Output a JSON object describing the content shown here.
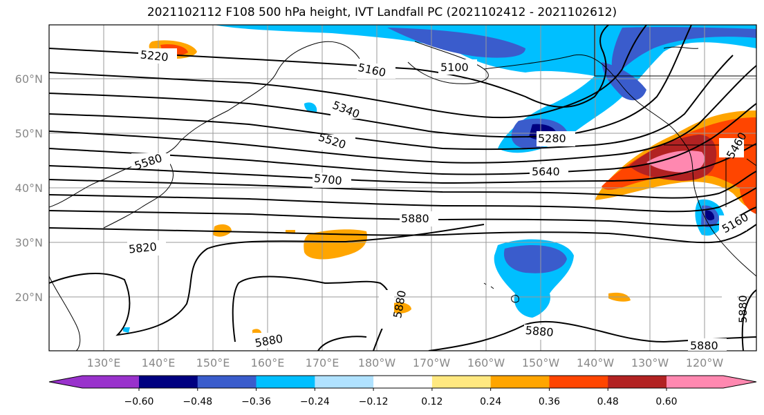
{
  "title": "2021102112 F108 500 hPa height, IVT Landfall PC (2021102412 - 2021102612)",
  "lat_labels": [
    "60°N",
    "50°N",
    "40°N",
    "30°N",
    "20°N"
  ],
  "lon_labels": [
    "130°E",
    "140°E",
    "150°E",
    "160°E",
    "170°E",
    "180°W",
    "170°W",
    "160°W",
    "150°W",
    "140°W",
    "130°W",
    "120°W"
  ],
  "contour_labels": [
    "5220",
    "5160",
    "5100",
    "5280",
    "5340",
    "5520",
    "5580",
    "5640",
    "5700",
    "5880",
    "5820",
    "5880",
    "5880",
    "5880",
    "5880",
    "5880",
    "5460",
    "5160"
  ],
  "colorbar": {
    "ticks": [
      "−0.60",
      "−0.48",
      "−0.36",
      "−0.24",
      "−0.12",
      "0.12",
      "0.24",
      "0.36",
      "0.48",
      "0.60"
    ],
    "colors": [
      "#9932cc",
      "#000080",
      "#3a5ccc",
      "#00bfff",
      "#b0e2ff",
      "#ffffff",
      "#ffe880",
      "#ffa500",
      "#ff4500",
      "#b22222",
      "#ff88b0"
    ]
  },
  "colors": {
    "axis_label": "#888888",
    "grid": "#9a9a9a",
    "contour": "#000000"
  }
}
